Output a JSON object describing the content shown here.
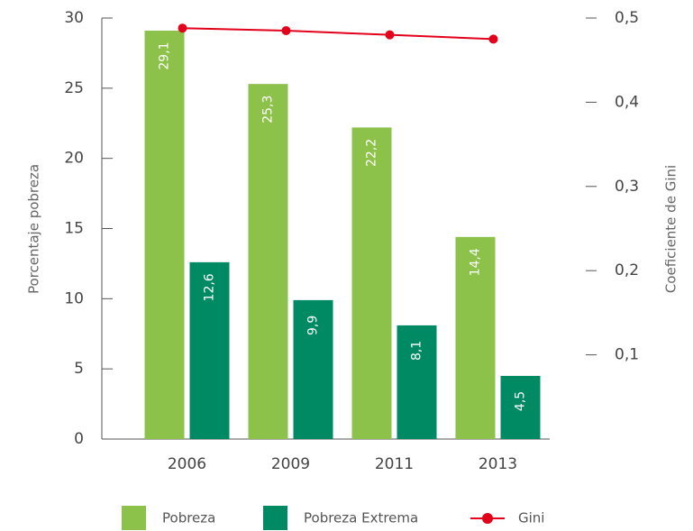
{
  "chart_data": {
    "type": "bar_line",
    "ylabel": "Porcentaje pobreza",
    "y2label": "Coeficiente de Gini",
    "categories": [
      "2006",
      "2009",
      "2011",
      "2013"
    ],
    "series": [
      {
        "name": "Pobreza",
        "type": "bar",
        "color": "#8cc14a",
        "values": [
          29.1,
          25.3,
          22.2,
          14.4
        ],
        "value_labels": [
          "29,1",
          "25,3",
          "22,2",
          "14,4"
        ]
      },
      {
        "name": "Pobreza Extrema",
        "type": "bar",
        "color": "#008a63",
        "values": [
          12.6,
          9.9,
          8.1,
          4.5
        ],
        "value_labels": [
          "12,6",
          "9,9",
          "8,1",
          "4,5"
        ]
      },
      {
        "name": "Gini",
        "type": "line",
        "axis": "y2",
        "color": "#e2001a",
        "values": [
          0.488,
          0.485,
          0.48,
          0.475
        ]
      }
    ],
    "ylim": [
      0,
      30
    ],
    "yticks": [
      0,
      5,
      10,
      15,
      20,
      25,
      30
    ],
    "y2lim": [
      0,
      0.5
    ],
    "y2ticks": [
      {
        "value": 0.1,
        "label": "0,1"
      },
      {
        "value": 0.2,
        "label": "0,2"
      },
      {
        "value": 0.3,
        "label": "0,3"
      },
      {
        "value": 0.4,
        "label": "0,4"
      },
      {
        "value": 0.5,
        "label": "0,5"
      }
    ],
    "legend": "bottom"
  }
}
